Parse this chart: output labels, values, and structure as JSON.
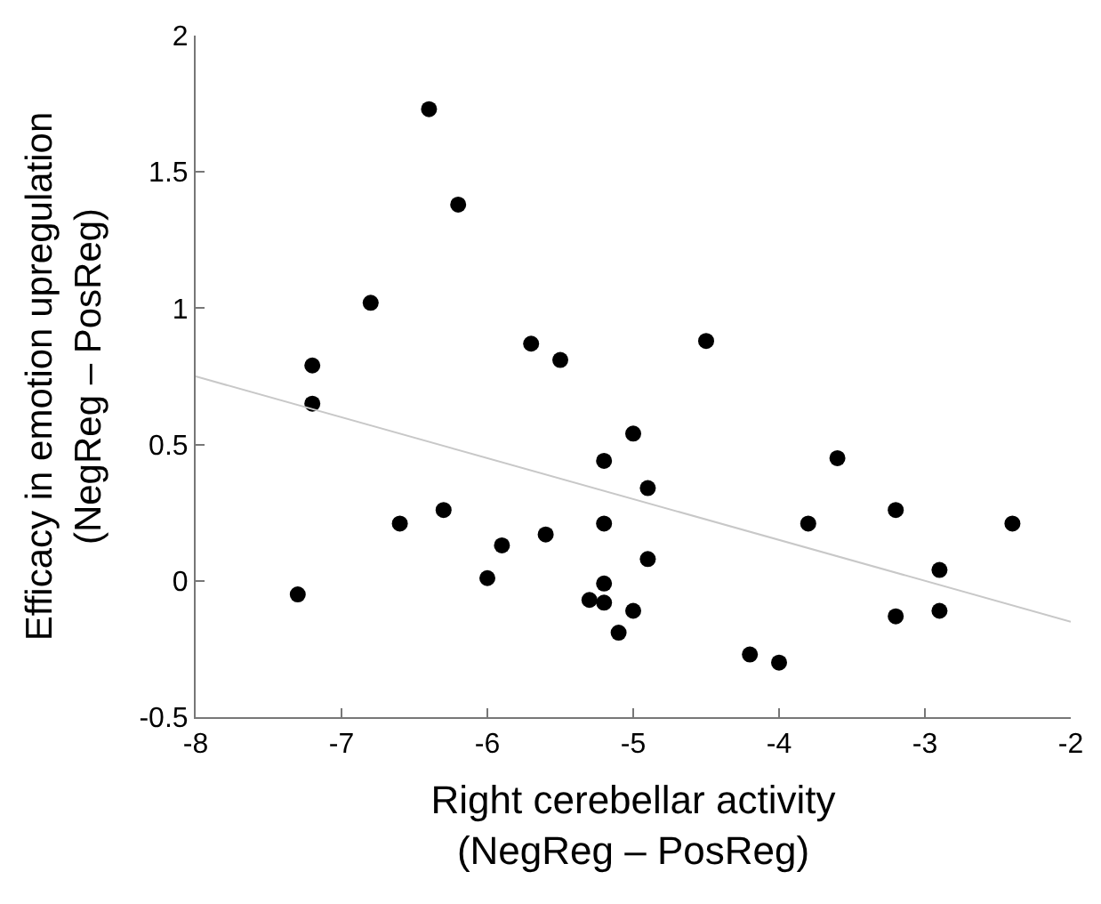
{
  "chart_data": {
    "type": "scatter",
    "xlabel": "Right cerebellar activity\n(NegReg – PosReg)",
    "ylabel": "Efficacy in emotion upregulation\n(NegReg – PosReg)",
    "xlim": [
      -8,
      -2
    ],
    "ylim": [
      -0.5,
      2
    ],
    "xticks": [
      -8,
      -7,
      -6,
      -5,
      -4,
      -3,
      -2
    ],
    "yticks": [
      {
        "value": -0.5,
        "label": "-0.5"
      },
      0,
      {
        "value": 0.5,
        "label": "0.5"
      },
      1,
      {
        "value": 1.5,
        "label": "1.5"
      },
      2
    ],
    "legend": false,
    "series": [
      {
        "color": "#000000",
        "marker": "circle",
        "x": [
          -7.3,
          -7.2,
          -7.2,
          -6.8,
          -6.6,
          -6.4,
          -6.3,
          -6.2,
          -6.0,
          -5.9,
          -5.7,
          -5.6,
          -5.5,
          -5.3,
          -5.2,
          -5.2,
          -5.2,
          -5.2,
          -5.1,
          -5.0,
          -5.0,
          -4.9,
          -4.9,
          -4.5,
          -4.2,
          -4.0,
          -3.8,
          -3.6,
          -3.2,
          -3.2,
          -2.9,
          -2.9,
          -2.4
        ],
        "values": [
          -0.05,
          0.79,
          0.65,
          1.02,
          0.21,
          1.73,
          0.26,
          1.38,
          0.01,
          0.13,
          0.87,
          0.17,
          0.81,
          -0.07,
          0.44,
          0.21,
          -0.01,
          -0.08,
          -0.19,
          0.54,
          -0.11,
          0.34,
          0.08,
          0.88,
          -0.27,
          -0.3,
          0.21,
          0.45,
          0.26,
          -0.13,
          0.04,
          -0.11,
          0.21
        ]
      },
      {
        "type": "line",
        "color": "#c8c8c8",
        "x": [
          -8,
          -2
        ],
        "values": [
          0.75,
          -0.15
        ],
        "marker": "none"
      }
    ]
  }
}
